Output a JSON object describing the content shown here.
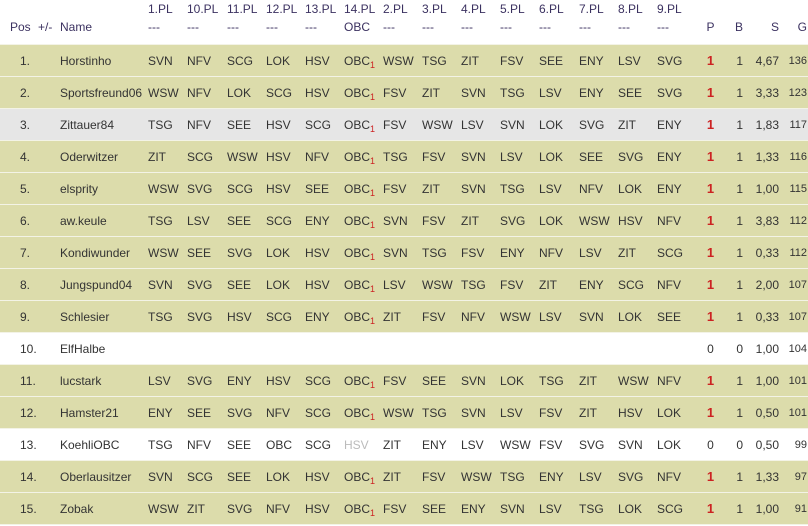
{
  "header": {
    "pos": "Pos",
    "change": "+/-",
    "name": "Name",
    "rounds": [
      {
        "label": "1.PL",
        "sub": "---"
      },
      {
        "label": "10.PL",
        "sub": "---"
      },
      {
        "label": "11.PL",
        "sub": "---"
      },
      {
        "label": "12.PL",
        "sub": "---"
      },
      {
        "label": "13.PL",
        "sub": "---"
      },
      {
        "label": "14.PL",
        "sub": "OBC"
      },
      {
        "label": "2.PL",
        "sub": "---"
      },
      {
        "label": "3.PL",
        "sub": "---"
      },
      {
        "label": "4.PL",
        "sub": "---"
      },
      {
        "label": "5.PL",
        "sub": "---"
      },
      {
        "label": "6.PL",
        "sub": "---"
      },
      {
        "label": "7.PL",
        "sub": "---"
      },
      {
        "label": "8.PL",
        "sub": "---"
      },
      {
        "label": "9.PL",
        "sub": "---"
      }
    ],
    "p": "P",
    "b": "B",
    "s": "S",
    "g": "G"
  },
  "colors": {
    "olive": "#dcdcab",
    "grey": "#e6e6e6",
    "white": "#ffffff",
    "points_red": "#cc2222",
    "header_text": "#3b3160"
  },
  "rows": [
    {
      "pos": "1.",
      "name": "Horstinho",
      "bg": "olive",
      "picks": [
        "SVN",
        "NFV",
        "SCG",
        "LOK",
        "HSV",
        "OBC",
        "WSW",
        "TSG",
        "ZIT",
        "FSV",
        "SEE",
        "ENY",
        "LSV",
        "SVG"
      ],
      "sub": "1",
      "p": "1",
      "b": "1",
      "s": "4,67",
      "g": "136"
    },
    {
      "pos": "2.",
      "name": "Sportsfreund06",
      "bg": "olive",
      "picks": [
        "WSW",
        "NFV",
        "LOK",
        "SCG",
        "HSV",
        "OBC",
        "FSV",
        "ZIT",
        "SVN",
        "TSG",
        "LSV",
        "ENY",
        "SEE",
        "SVG"
      ],
      "sub": "1",
      "p": "1",
      "b": "1",
      "s": "3,33",
      "g": "123"
    },
    {
      "pos": "3.",
      "name": "Zittauer84",
      "bg": "grey",
      "picks": [
        "TSG",
        "NFV",
        "SEE",
        "HSV",
        "SCG",
        "OBC",
        "FSV",
        "WSW",
        "LSV",
        "SVN",
        "LOK",
        "SVG",
        "ZIT",
        "ENY"
      ],
      "sub": "1",
      "p": "1",
      "b": "1",
      "s": "1,83",
      "g": "117"
    },
    {
      "pos": "4.",
      "name": "Oderwitzer",
      "bg": "olive",
      "picks": [
        "ZIT",
        "SCG",
        "WSW",
        "HSV",
        "NFV",
        "OBC",
        "TSG",
        "FSV",
        "SVN",
        "LSV",
        "LOK",
        "SEE",
        "SVG",
        "ENY"
      ],
      "sub": "1",
      "p": "1",
      "b": "1",
      "s": "1,33",
      "g": "116"
    },
    {
      "pos": "5.",
      "name": "elsprity",
      "bg": "olive",
      "picks": [
        "WSW",
        "SVG",
        "SCG",
        "HSV",
        "SEE",
        "OBC",
        "FSV",
        "ZIT",
        "SVN",
        "TSG",
        "LSV",
        "NFV",
        "LOK",
        "ENY"
      ],
      "sub": "1",
      "p": "1",
      "b": "1",
      "s": "1,00",
      "g": "115"
    },
    {
      "pos": "6.",
      "name": "aw.keule",
      "bg": "olive",
      "picks": [
        "TSG",
        "LSV",
        "SEE",
        "SCG",
        "ENY",
        "OBC",
        "SVN",
        "FSV",
        "ZIT",
        "SVG",
        "LOK",
        "WSW",
        "HSV",
        "NFV"
      ],
      "sub": "1",
      "p": "1",
      "b": "1",
      "s": "3,83",
      "g": "112"
    },
    {
      "pos": "7.",
      "name": "Kondiwunder",
      "bg": "olive",
      "picks": [
        "WSW",
        "SEE",
        "SVG",
        "LOK",
        "HSV",
        "OBC",
        "SVN",
        "TSG",
        "FSV",
        "ENY",
        "NFV",
        "LSV",
        "ZIT",
        "SCG"
      ],
      "sub": "1",
      "p": "1",
      "b": "1",
      "s": "0,33",
      "g": "112"
    },
    {
      "pos": "8.",
      "name": "Jungspund04",
      "bg": "olive",
      "picks": [
        "SVN",
        "SVG",
        "SEE",
        "LOK",
        "HSV",
        "OBC",
        "LSV",
        "WSW",
        "TSG",
        "FSV",
        "ZIT",
        "ENY",
        "SCG",
        "NFV"
      ],
      "sub": "1",
      "p": "1",
      "b": "1",
      "s": "2,00",
      "g": "107"
    },
    {
      "pos": "9.",
      "name": "Schlesier",
      "bg": "olive",
      "picks": [
        "TSG",
        "SVG",
        "HSV",
        "SCG",
        "ENY",
        "OBC",
        "ZIT",
        "FSV",
        "NFV",
        "WSW",
        "LSV",
        "SVN",
        "LOK",
        "SEE"
      ],
      "sub": "1",
      "p": "1",
      "b": "1",
      "s": "0,33",
      "g": "107"
    },
    {
      "pos": "10.",
      "name": "ElfHalbe",
      "bg": "white",
      "picks": [
        "",
        "",
        "",
        "",
        "",
        "",
        "",
        "",
        "",
        "",
        "",
        "",
        "",
        ""
      ],
      "sub": "",
      "p": "0",
      "b": "0",
      "s": "1,00",
      "g": "104"
    },
    {
      "pos": "11.",
      "name": "lucstark",
      "bg": "olive",
      "picks": [
        "LSV",
        "SVG",
        "ENY",
        "HSV",
        "SCG",
        "OBC",
        "FSV",
        "SEE",
        "SVN",
        "LOK",
        "TSG",
        "ZIT",
        "WSW",
        "NFV"
      ],
      "sub": "1",
      "p": "1",
      "b": "1",
      "s": "1,00",
      "g": "101"
    },
    {
      "pos": "12.",
      "name": "Hamster21",
      "bg": "olive",
      "picks": [
        "ENY",
        "SEE",
        "SVG",
        "NFV",
        "SCG",
        "OBC",
        "WSW",
        "TSG",
        "SVN",
        "LSV",
        "FSV",
        "ZIT",
        "HSV",
        "LOK"
      ],
      "sub": "1",
      "p": "1",
      "b": "1",
      "s": "0,50",
      "g": "101"
    },
    {
      "pos": "13.",
      "name": "KoehliOBC",
      "bg": "white",
      "picks": [
        "TSG",
        "NFV",
        "SEE",
        "OBC",
        "SCG",
        "HSV",
        "ZIT",
        "ENY",
        "LSV",
        "WSW",
        "FSV",
        "SVG",
        "SVN",
        "LOK"
      ],
      "sub": "",
      "dim14": true,
      "p": "0",
      "b": "0",
      "s": "0,50",
      "g": "99"
    },
    {
      "pos": "14.",
      "name": "Oberlausitzer",
      "bg": "olive",
      "picks": [
        "SVN",
        "SCG",
        "SEE",
        "LOK",
        "HSV",
        "OBC",
        "ZIT",
        "FSV",
        "WSW",
        "TSG",
        "ENY",
        "LSV",
        "SVG",
        "NFV"
      ],
      "sub": "1",
      "p": "1",
      "b": "1",
      "s": "1,33",
      "g": "97"
    },
    {
      "pos": "15.",
      "name": "Zobak",
      "bg": "olive",
      "picks": [
        "WSW",
        "ZIT",
        "SVG",
        "NFV",
        "HSV",
        "OBC",
        "FSV",
        "SEE",
        "ENY",
        "SVN",
        "LSV",
        "TSG",
        "LOK",
        "SCG"
      ],
      "sub": "1",
      "p": "1",
      "b": "1",
      "s": "1,00",
      "g": "91"
    }
  ]
}
